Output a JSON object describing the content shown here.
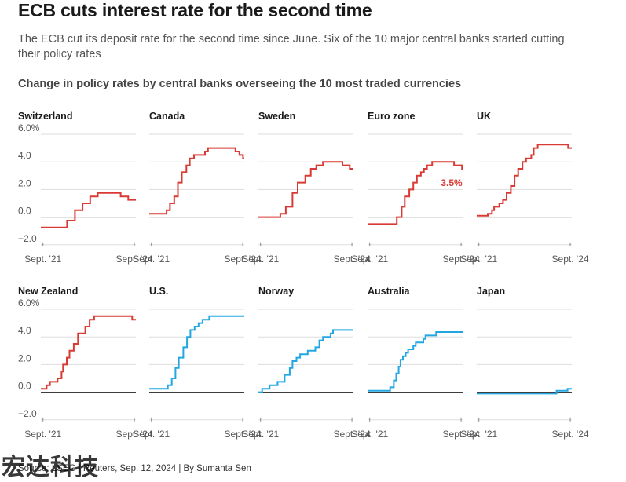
{
  "header": {
    "title": "ECB cuts interest rate for the second time",
    "subtitle": "The ECB cut its deposit rate for the second time since June. Six of the 10 major central banks started cutting their policy rates",
    "source": "Source: LSEG | Reuters, Sep. 12, 2024 | By Sumanta Sen",
    "watermark": "宏达科技"
  },
  "colors": {
    "cutting": "#d93a33",
    "not_cutting": "#22a7e2",
    "grid": "#dddddd",
    "zero_line": "#222222"
  },
  "chart_data": {
    "type": "line",
    "title": "Change in policy rates by central banks overseeing the 10 most traded currencies",
    "y_ticks": [
      "6.0%",
      "4.0",
      "2.0",
      "0.0",
      "−2.0"
    ],
    "y_tick_values": [
      6,
      4,
      2,
      0,
      -2
    ],
    "ylim": [
      -2,
      6
    ],
    "x_ticks": [
      "Sept. '21",
      "Sept. '24"
    ],
    "x_tick_values": [
      2021.67,
      2024.67
    ],
    "xlim": [
      2021.6,
      2024.72
    ],
    "grid": true,
    "panels": [
      {
        "name": "Switzerland",
        "color": "cutting",
        "points": [
          [
            2021.6,
            -0.75
          ],
          [
            2022.46,
            -0.75
          ],
          [
            2022.46,
            -0.25
          ],
          [
            2022.72,
            -0.25
          ],
          [
            2022.72,
            0.5
          ],
          [
            2022.97,
            0.5
          ],
          [
            2022.97,
            1.0
          ],
          [
            2023.22,
            1.0
          ],
          [
            2023.22,
            1.5
          ],
          [
            2023.47,
            1.5
          ],
          [
            2023.47,
            1.75
          ],
          [
            2024.22,
            1.75
          ],
          [
            2024.22,
            1.5
          ],
          [
            2024.47,
            1.5
          ],
          [
            2024.47,
            1.25
          ],
          [
            2024.72,
            1.25
          ]
        ]
      },
      {
        "name": "Canada",
        "color": "cutting",
        "points": [
          [
            2021.6,
            0.25
          ],
          [
            2022.17,
            0.25
          ],
          [
            2022.17,
            0.5
          ],
          [
            2022.28,
            0.5
          ],
          [
            2022.28,
            1.0
          ],
          [
            2022.42,
            1.0
          ],
          [
            2022.42,
            1.5
          ],
          [
            2022.54,
            1.5
          ],
          [
            2022.54,
            2.5
          ],
          [
            2022.67,
            2.5
          ],
          [
            2022.67,
            3.25
          ],
          [
            2022.82,
            3.25
          ],
          [
            2022.82,
            3.75
          ],
          [
            2022.93,
            3.75
          ],
          [
            2022.93,
            4.25
          ],
          [
            2023.07,
            4.25
          ],
          [
            2023.07,
            4.5
          ],
          [
            2023.43,
            4.5
          ],
          [
            2023.43,
            4.75
          ],
          [
            2023.53,
            4.75
          ],
          [
            2023.53,
            5.0
          ],
          [
            2024.43,
            5.0
          ],
          [
            2024.43,
            4.75
          ],
          [
            2024.56,
            4.75
          ],
          [
            2024.56,
            4.5
          ],
          [
            2024.68,
            4.5
          ],
          [
            2024.68,
            4.25
          ],
          [
            2024.72,
            4.25
          ]
        ]
      },
      {
        "name": "Sweden",
        "color": "cutting",
        "points": [
          [
            2021.6,
            0.0
          ],
          [
            2022.32,
            0.0
          ],
          [
            2022.32,
            0.25
          ],
          [
            2022.5,
            0.25
          ],
          [
            2022.5,
            0.75
          ],
          [
            2022.72,
            0.75
          ],
          [
            2022.72,
            1.75
          ],
          [
            2022.89,
            1.75
          ],
          [
            2022.89,
            2.5
          ],
          [
            2023.14,
            2.5
          ],
          [
            2023.14,
            3.0
          ],
          [
            2023.32,
            3.0
          ],
          [
            2023.32,
            3.5
          ],
          [
            2023.5,
            3.5
          ],
          [
            2023.5,
            3.75
          ],
          [
            2023.72,
            3.75
          ],
          [
            2023.72,
            4.0
          ],
          [
            2024.36,
            4.0
          ],
          [
            2024.36,
            3.75
          ],
          [
            2024.6,
            3.75
          ],
          [
            2024.6,
            3.5
          ],
          [
            2024.72,
            3.5
          ]
        ]
      },
      {
        "name": "Euro zone",
        "color": "cutting",
        "end_label": "3.5%",
        "points": [
          [
            2021.6,
            -0.5
          ],
          [
            2022.56,
            -0.5
          ],
          [
            2022.56,
            0.0
          ],
          [
            2022.72,
            0.0
          ],
          [
            2022.72,
            0.75
          ],
          [
            2022.82,
            0.75
          ],
          [
            2022.82,
            1.5
          ],
          [
            2022.97,
            1.5
          ],
          [
            2022.97,
            2.0
          ],
          [
            2023.1,
            2.0
          ],
          [
            2023.1,
            2.5
          ],
          [
            2023.22,
            2.5
          ],
          [
            2023.22,
            3.0
          ],
          [
            2023.35,
            3.0
          ],
          [
            2023.35,
            3.25
          ],
          [
            2023.45,
            3.25
          ],
          [
            2023.45,
            3.5
          ],
          [
            2023.55,
            3.5
          ],
          [
            2023.55,
            3.75
          ],
          [
            2023.72,
            3.75
          ],
          [
            2023.72,
            4.0
          ],
          [
            2024.44,
            4.0
          ],
          [
            2024.44,
            3.75
          ],
          [
            2024.7,
            3.75
          ],
          [
            2024.7,
            3.5
          ],
          [
            2024.72,
            3.5
          ]
        ]
      },
      {
        "name": "UK",
        "color": "cutting",
        "points": [
          [
            2021.6,
            0.1
          ],
          [
            2021.96,
            0.1
          ],
          [
            2021.96,
            0.25
          ],
          [
            2022.1,
            0.25
          ],
          [
            2022.1,
            0.5
          ],
          [
            2022.17,
            0.5
          ],
          [
            2022.17,
            0.75
          ],
          [
            2022.34,
            0.75
          ],
          [
            2022.34,
            1.0
          ],
          [
            2022.46,
            1.0
          ],
          [
            2022.46,
            1.25
          ],
          [
            2022.58,
            1.25
          ],
          [
            2022.58,
            1.75
          ],
          [
            2022.72,
            1.75
          ],
          [
            2022.72,
            2.25
          ],
          [
            2022.84,
            2.25
          ],
          [
            2022.84,
            3.0
          ],
          [
            2022.96,
            3.0
          ],
          [
            2022.96,
            3.5
          ],
          [
            2023.1,
            3.5
          ],
          [
            2023.1,
            4.0
          ],
          [
            2023.22,
            4.0
          ],
          [
            2023.22,
            4.25
          ],
          [
            2023.39,
            4.25
          ],
          [
            2023.39,
            4.5
          ],
          [
            2023.47,
            4.5
          ],
          [
            2023.47,
            5.0
          ],
          [
            2023.6,
            5.0
          ],
          [
            2023.6,
            5.25
          ],
          [
            2024.6,
            5.25
          ],
          [
            2024.6,
            5.0
          ],
          [
            2024.72,
            5.0
          ]
        ]
      },
      {
        "name": "New Zealand",
        "color": "cutting",
        "points": [
          [
            2021.6,
            0.25
          ],
          [
            2021.79,
            0.25
          ],
          [
            2021.79,
            0.5
          ],
          [
            2021.9,
            0.5
          ],
          [
            2021.9,
            0.75
          ],
          [
            2022.15,
            0.75
          ],
          [
            2022.15,
            1.0
          ],
          [
            2022.28,
            1.0
          ],
          [
            2022.28,
            1.5
          ],
          [
            2022.33,
            1.5
          ],
          [
            2022.33,
            2.0
          ],
          [
            2022.45,
            2.0
          ],
          [
            2022.45,
            2.5
          ],
          [
            2022.54,
            2.5
          ],
          [
            2022.54,
            3.0
          ],
          [
            2022.68,
            3.0
          ],
          [
            2022.68,
            3.5
          ],
          [
            2022.82,
            3.5
          ],
          [
            2022.82,
            4.25
          ],
          [
            2022.9,
            4.25
          ],
          [
            2022.9,
            4.25
          ],
          [
            2023.06,
            4.25
          ],
          [
            2023.06,
            4.75
          ],
          [
            2023.2,
            4.75
          ],
          [
            2023.2,
            5.25
          ],
          [
            2023.35,
            5.25
          ],
          [
            2023.35,
            5.5
          ],
          [
            2024.6,
            5.5
          ],
          [
            2024.6,
            5.25
          ],
          [
            2024.72,
            5.25
          ]
        ]
      },
      {
        "name": "U.S.",
        "color": "not_cutting",
        "points": [
          [
            2021.6,
            0.25
          ],
          [
            2022.21,
            0.25
          ],
          [
            2022.21,
            0.5
          ],
          [
            2022.34,
            0.5
          ],
          [
            2022.34,
            1.0
          ],
          [
            2022.46,
            1.0
          ],
          [
            2022.46,
            1.75
          ],
          [
            2022.57,
            1.75
          ],
          [
            2022.57,
            2.5
          ],
          [
            2022.72,
            2.5
          ],
          [
            2022.72,
            3.25
          ],
          [
            2022.84,
            3.25
          ],
          [
            2022.84,
            4.0
          ],
          [
            2022.95,
            4.0
          ],
          [
            2022.95,
            4.5
          ],
          [
            2023.09,
            4.5
          ],
          [
            2023.09,
            4.75
          ],
          [
            2023.22,
            4.75
          ],
          [
            2023.22,
            5.0
          ],
          [
            2023.35,
            5.0
          ],
          [
            2023.35,
            5.25
          ],
          [
            2023.57,
            5.25
          ],
          [
            2023.57,
            5.5
          ],
          [
            2024.72,
            5.5
          ]
        ]
      },
      {
        "name": "Norway",
        "color": "not_cutting",
        "points": [
          [
            2021.6,
            0.0
          ],
          [
            2021.72,
            0.0
          ],
          [
            2021.72,
            0.25
          ],
          [
            2021.97,
            0.25
          ],
          [
            2021.97,
            0.5
          ],
          [
            2022.23,
            0.5
          ],
          [
            2022.23,
            0.75
          ],
          [
            2022.46,
            0.75
          ],
          [
            2022.46,
            1.25
          ],
          [
            2022.63,
            1.25
          ],
          [
            2022.63,
            1.75
          ],
          [
            2022.72,
            1.75
          ],
          [
            2022.72,
            2.25
          ],
          [
            2022.85,
            2.25
          ],
          [
            2022.85,
            2.5
          ],
          [
            2022.97,
            2.5
          ],
          [
            2022.97,
            2.75
          ],
          [
            2023.22,
            2.75
          ],
          [
            2023.22,
            3.0
          ],
          [
            2023.47,
            3.0
          ],
          [
            2023.47,
            3.25
          ],
          [
            2023.47,
            3.25
          ],
          [
            2023.6,
            3.25
          ],
          [
            2023.6,
            3.75
          ],
          [
            2023.72,
            3.75
          ],
          [
            2023.72,
            4.0
          ],
          [
            2023.97,
            4.0
          ],
          [
            2023.97,
            4.25
          ],
          [
            2024.05,
            4.25
          ],
          [
            2024.05,
            4.5
          ],
          [
            2024.72,
            4.5
          ]
        ]
      },
      {
        "name": "Australia",
        "color": "not_cutting",
        "points": [
          [
            2021.6,
            0.1
          ],
          [
            2022.34,
            0.1
          ],
          [
            2022.34,
            0.35
          ],
          [
            2022.46,
            0.35
          ],
          [
            2022.46,
            0.85
          ],
          [
            2022.54,
            0.85
          ],
          [
            2022.54,
            1.35
          ],
          [
            2022.62,
            1.35
          ],
          [
            2022.62,
            1.85
          ],
          [
            2022.68,
            1.85
          ],
          [
            2022.68,
            2.35
          ],
          [
            2022.76,
            2.35
          ],
          [
            2022.76,
            2.6
          ],
          [
            2022.85,
            2.6
          ],
          [
            2022.85,
            2.85
          ],
          [
            2022.93,
            2.85
          ],
          [
            2022.93,
            3.1
          ],
          [
            2023.1,
            3.1
          ],
          [
            2023.1,
            3.35
          ],
          [
            2023.18,
            3.35
          ],
          [
            2023.18,
            3.6
          ],
          [
            2023.43,
            3.6
          ],
          [
            2023.43,
            3.85
          ],
          [
            2023.5,
            3.85
          ],
          [
            2023.5,
            4.1
          ],
          [
            2023.85,
            4.1
          ],
          [
            2023.85,
            4.35
          ],
          [
            2024.72,
            4.35
          ]
        ]
      },
      {
        "name": "Japan",
        "color": "not_cutting",
        "points": [
          [
            2021.6,
            -0.1
          ],
          [
            2024.22,
            -0.1
          ],
          [
            2024.22,
            0.1
          ],
          [
            2024.58,
            0.1
          ],
          [
            2024.58,
            0.25
          ],
          [
            2024.72,
            0.25
          ]
        ]
      }
    ]
  }
}
